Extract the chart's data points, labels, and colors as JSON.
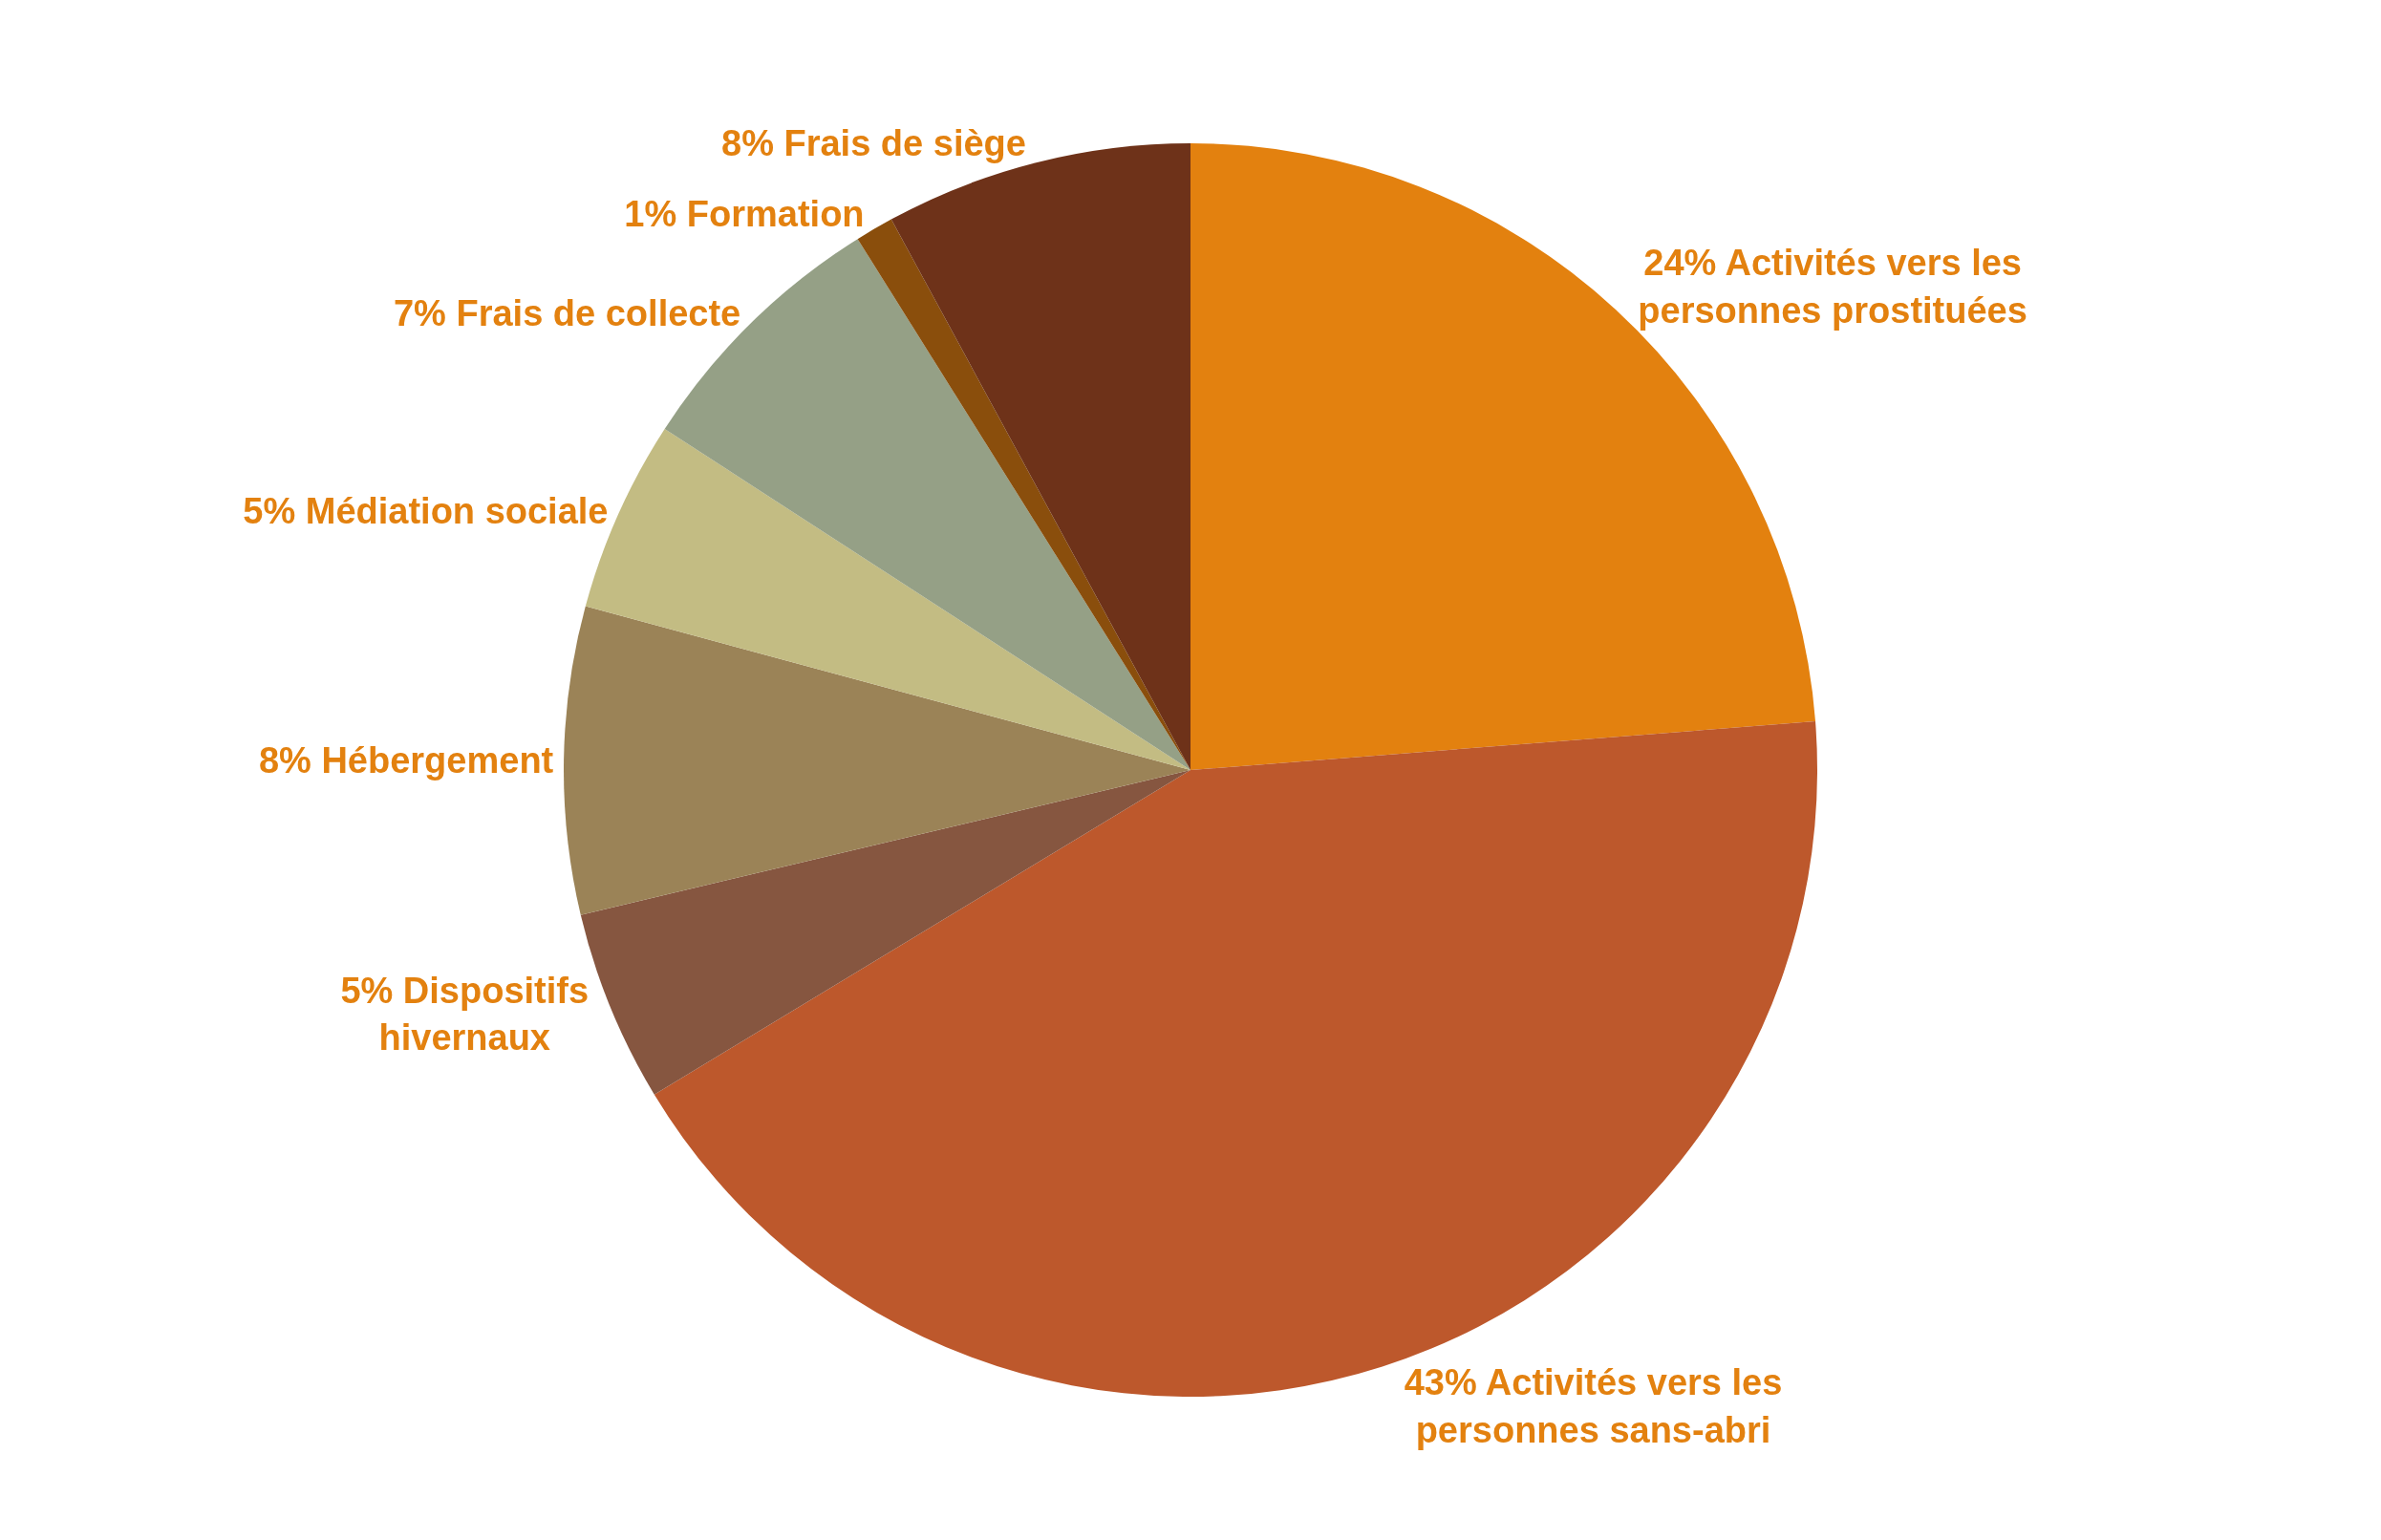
{
  "chart_data": {
    "type": "pie",
    "categories": [
      "Activités vers les personnes prostituées",
      "Activités vers les personnes sans-abri",
      "Dispositifs hivernaux",
      "Hébergement",
      "Médiation sociale",
      "Frais de collecte",
      "Formation",
      "Frais de siège"
    ],
    "values": [
      24,
      43,
      5,
      8,
      5,
      7,
      1,
      8
    ],
    "value_labels": [
      "24%",
      "43%",
      "5%",
      "8%",
      "5%",
      "7%",
      "1%",
      "8%"
    ],
    "colors": [
      "#e3810f",
      "#bd582c",
      "#865640",
      "#9b8357",
      "#c3bc83",
      "#95a086",
      "#8a4e0c",
      "#6e3219"
    ],
    "legend": false
  }
}
